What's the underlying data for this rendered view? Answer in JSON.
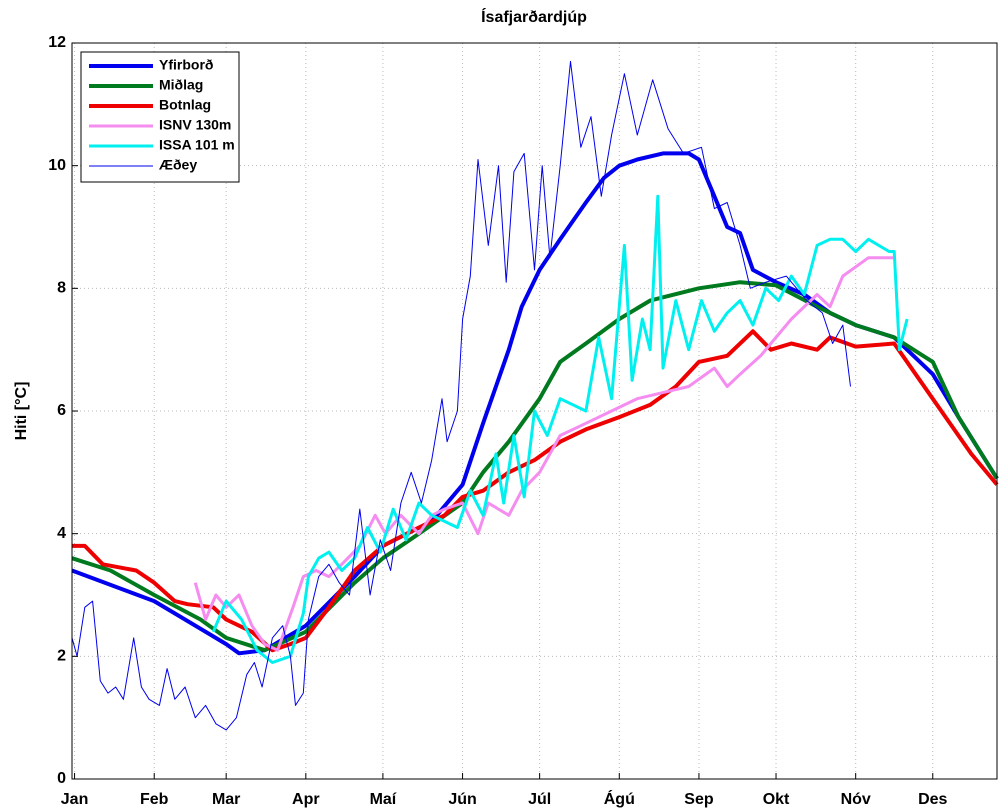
{
  "chart_data": {
    "type": "line",
    "title": "Ísafjarðardjúp",
    "y_label": "Hiti [°C]",
    "xlim": [
      0,
      360
    ],
    "ylim": [
      0,
      12
    ],
    "xticks": [
      {
        "value": 1,
        "label": "Jan"
      },
      {
        "value": 32,
        "label": "Feb"
      },
      {
        "value": 60,
        "label": "Mar"
      },
      {
        "value": 91,
        "label": "Apr"
      },
      {
        "value": 121,
        "label": "Maí"
      },
      {
        "value": 152,
        "label": "Jún"
      },
      {
        "value": 182,
        "label": "Júl"
      },
      {
        "value": 213,
        "label": "Ágú"
      },
      {
        "value": 244,
        "label": "Sep"
      },
      {
        "value": 274,
        "label": "Okt"
      },
      {
        "value": 305,
        "label": "Nóv"
      },
      {
        "value": 335,
        "label": "Des"
      }
    ],
    "yticks": [
      0,
      2,
      4,
      6,
      8,
      10,
      12
    ],
    "grid": true,
    "legend": "upper left",
    "series": [
      {
        "name": "Yfirborð",
        "color": "#0000ee",
        "x": [
          0,
          32,
          60,
          65,
          75,
          91,
          110,
          121,
          140,
          152,
          160,
          170,
          175,
          182,
          190,
          195,
          200,
          207,
          213,
          220,
          230,
          240,
          244,
          250,
          255,
          260,
          265,
          274,
          285,
          295,
          305,
          320,
          335,
          345,
          360
        ],
        "values": [
          3.4,
          2.9,
          2.2,
          2.05,
          2.1,
          2.5,
          3.3,
          3.8,
          4.2,
          4.8,
          5.8,
          7.0,
          7.7,
          8.3,
          8.8,
          9.1,
          9.4,
          9.8,
          10.0,
          10.1,
          10.2,
          10.2,
          10.1,
          9.5,
          9.0,
          8.9,
          8.3,
          8.1,
          7.9,
          7.6,
          7.4,
          7.2,
          6.6,
          5.9,
          4.9
        ]
      },
      {
        "name": "Miðlag",
        "color": "#007a1e",
        "x": [
          0,
          15,
          32,
          50,
          60,
          75,
          91,
          110,
          121,
          135,
          152,
          160,
          170,
          182,
          190,
          200,
          213,
          225,
          244,
          260,
          274,
          290,
          305,
          320,
          335,
          345,
          360
        ],
        "values": [
          3.6,
          3.4,
          3.0,
          2.6,
          2.3,
          2.1,
          2.4,
          3.2,
          3.6,
          4.0,
          4.5,
          5.0,
          5.5,
          6.2,
          6.8,
          7.1,
          7.5,
          7.8,
          8.0,
          8.1,
          8.05,
          7.7,
          7.4,
          7.2,
          6.8,
          5.9,
          4.9
        ]
      },
      {
        "name": "Botnlag",
        "color": "#ee0000",
        "x": [
          0,
          5,
          12,
          25,
          32,
          40,
          45,
          55,
          60,
          70,
          78,
          85,
          91,
          100,
          110,
          121,
          135,
          145,
          152,
          160,
          170,
          180,
          190,
          200,
          213,
          225,
          235,
          244,
          255,
          265,
          272,
          280,
          290,
          295,
          305,
          320,
          330,
          340,
          350,
          360
        ],
        "values": [
          3.8,
          3.8,
          3.5,
          3.4,
          3.2,
          2.9,
          2.85,
          2.8,
          2.6,
          2.4,
          2.1,
          2.2,
          2.3,
          2.8,
          3.4,
          3.8,
          4.1,
          4.3,
          4.6,
          4.7,
          5.0,
          5.2,
          5.5,
          5.7,
          5.9,
          6.1,
          6.4,
          6.8,
          6.9,
          7.3,
          7.0,
          7.1,
          7.0,
          7.2,
          7.05,
          7.1,
          6.5,
          5.9,
          5.3,
          4.8
        ]
      },
      {
        "name": "ISNV 130m",
        "color": "#f58cf0",
        "x": [
          48,
          52,
          56,
          60,
          65,
          70,
          75,
          80,
          86,
          90,
          95,
          100,
          105,
          112,
          118,
          122,
          128,
          135,
          140,
          145,
          152,
          158,
          162,
          170,
          175,
          182,
          190,
          200,
          210,
          220,
          230,
          240,
          250,
          255,
          260,
          268,
          274,
          280,
          290,
          295,
          300,
          310,
          320
        ],
        "values": [
          3.2,
          2.6,
          3.0,
          2.8,
          3.0,
          2.5,
          2.2,
          2.1,
          2.8,
          3.3,
          3.4,
          3.3,
          3.5,
          3.8,
          4.3,
          4.0,
          4.3,
          4.0,
          4.3,
          4.4,
          4.5,
          4.0,
          4.5,
          4.3,
          4.7,
          5.0,
          5.6,
          5.8,
          6.0,
          6.2,
          6.3,
          6.4,
          6.7,
          6.4,
          6.6,
          6.9,
          7.2,
          7.5,
          7.9,
          7.7,
          8.2,
          8.5,
          8.5
        ]
      },
      {
        "name": "ISSA 101 m",
        "color": "#00f0f0",
        "x": [
          55,
          60,
          66,
          72,
          78,
          85,
          90,
          92,
          96,
          100,
          105,
          110,
          115,
          120,
          125,
          130,
          135,
          140,
          145,
          150,
          155,
          160,
          165,
          168,
          172,
          176,
          180,
          185,
          190,
          200,
          205,
          210,
          215,
          218,
          222,
          225,
          228,
          230,
          235,
          240,
          245,
          250,
          255,
          260,
          265,
          270,
          275,
          280,
          285,
          290,
          295,
          300,
          305,
          310,
          318,
          320,
          322,
          325
        ],
        "values": [
          2.4,
          2.9,
          2.6,
          2.1,
          1.9,
          2.0,
          2.7,
          3.3,
          3.6,
          3.7,
          3.4,
          3.6,
          4.1,
          3.7,
          4.4,
          3.9,
          4.5,
          4.3,
          4.2,
          4.1,
          4.7,
          4.3,
          5.3,
          4.5,
          5.6,
          4.6,
          6.0,
          5.6,
          6.2,
          6.0,
          7.2,
          6.2,
          8.7,
          6.5,
          7.5,
          7.0,
          9.5,
          6.7,
          7.8,
          7.0,
          7.8,
          7.3,
          7.6,
          7.8,
          7.4,
          8.0,
          7.8,
          8.2,
          7.9,
          8.7,
          8.8,
          8.8,
          8.6,
          8.8,
          8.6,
          8.6,
          7.0,
          7.5
        ]
      },
      {
        "name": "Æðey",
        "color": "#0000ee",
        "x": [
          0,
          2,
          5,
          8,
          11,
          14,
          17,
          20,
          24,
          27,
          30,
          34,
          37,
          40,
          44,
          48,
          52,
          56,
          60,
          64,
          68,
          71,
          74,
          78,
          82,
          85,
          87,
          90,
          92,
          96,
          100,
          104,
          108,
          112,
          116,
          120,
          124,
          128,
          132,
          136,
          140,
          144,
          146,
          150,
          152,
          155,
          158,
          162,
          166,
          169,
          172,
          176,
          180,
          183,
          186,
          190,
          194,
          198,
          202,
          206,
          210,
          215,
          220,
          226,
          232,
          238,
          245,
          250,
          255,
          260,
          264,
          270,
          278,
          286,
          292,
          296,
          300,
          303
        ],
        "values": [
          2.3,
          2.0,
          2.8,
          2.9,
          1.6,
          1.4,
          1.5,
          1.3,
          2.3,
          1.5,
          1.3,
          1.2,
          1.8,
          1.3,
          1.5,
          1.0,
          1.2,
          0.9,
          0.8,
          1.0,
          1.7,
          1.9,
          1.5,
          2.3,
          2.5,
          2.0,
          1.2,
          1.4,
          2.6,
          3.3,
          3.5,
          3.2,
          3.0,
          4.4,
          3.0,
          3.9,
          3.4,
          4.5,
          5.0,
          4.5,
          5.2,
          6.2,
          5.5,
          6.0,
          7.5,
          8.2,
          10.1,
          8.7,
          10.0,
          8.1,
          9.9,
          10.2,
          8.3,
          10.0,
          8.5,
          10.0,
          11.7,
          10.3,
          10.8,
          9.5,
          10.5,
          11.5,
          10.5,
          11.4,
          10.6,
          10.2,
          10.3,
          9.3,
          9.4,
          8.7,
          8.0,
          8.1,
          8.2,
          7.8,
          7.6,
          7.1,
          7.4,
          6.4
        ]
      }
    ]
  }
}
